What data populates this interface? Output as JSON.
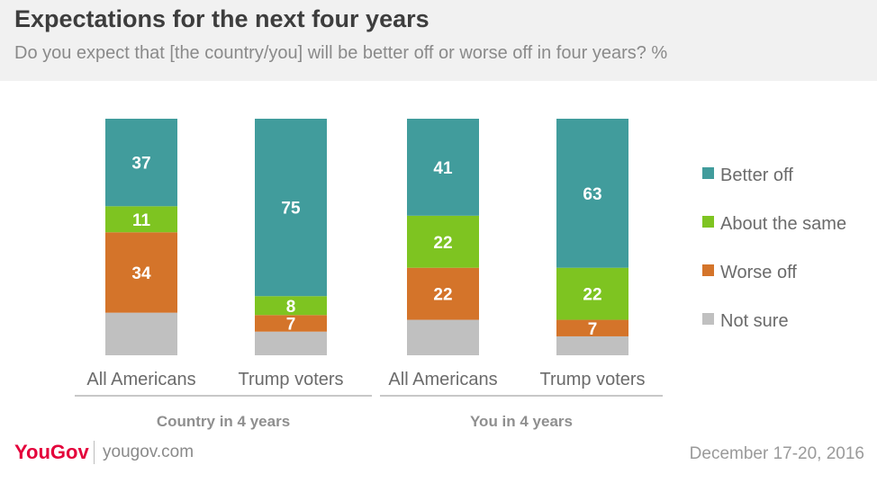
{
  "title": "Expectations for the next four years",
  "subtitle": "Do you expect that [the country/you] will be better off or worse off in four years? %",
  "footer": {
    "logo": "YouGov",
    "site": "yougov.com",
    "date": "December 17-20, 2016"
  },
  "chart_data": {
    "type": "bar",
    "stacked": true,
    "categories": [
      "All Americans",
      "Trump voters",
      "All Americans",
      "Trump voters"
    ],
    "groups": [
      {
        "label": "Country in 4 years",
        "categories": [
          0,
          1
        ]
      },
      {
        "label": "You in 4 years",
        "categories": [
          2,
          3
        ]
      }
    ],
    "series": [
      {
        "name": "Not sure",
        "color": "#c0c0c0",
        "values": [
          18,
          10,
          15,
          8
        ]
      },
      {
        "name": "Worse off",
        "color": "#d4742a",
        "values": [
          34,
          7,
          22,
          7
        ]
      },
      {
        "name": "About the same",
        "color": "#7ec421",
        "values": [
          11,
          8,
          22,
          22
        ]
      },
      {
        "name": "Better off",
        "color": "#419c9c",
        "values": [
          37,
          75,
          41,
          63
        ]
      }
    ],
    "value_labels": {
      "Not sure": [
        "",
        "",
        "",
        ""
      ],
      "Worse off": [
        "34",
        "7",
        "22",
        "7"
      ],
      "About the same": [
        "11",
        "8",
        "22",
        "22"
      ],
      "Better off": [
        "37",
        "75",
        "41",
        "63"
      ]
    },
    "legend": {
      "position": "right",
      "entries": [
        "Better off",
        "About the same",
        "Worse off",
        "Not sure"
      ]
    },
    "ylim": [
      0,
      100
    ],
    "grid": false
  }
}
